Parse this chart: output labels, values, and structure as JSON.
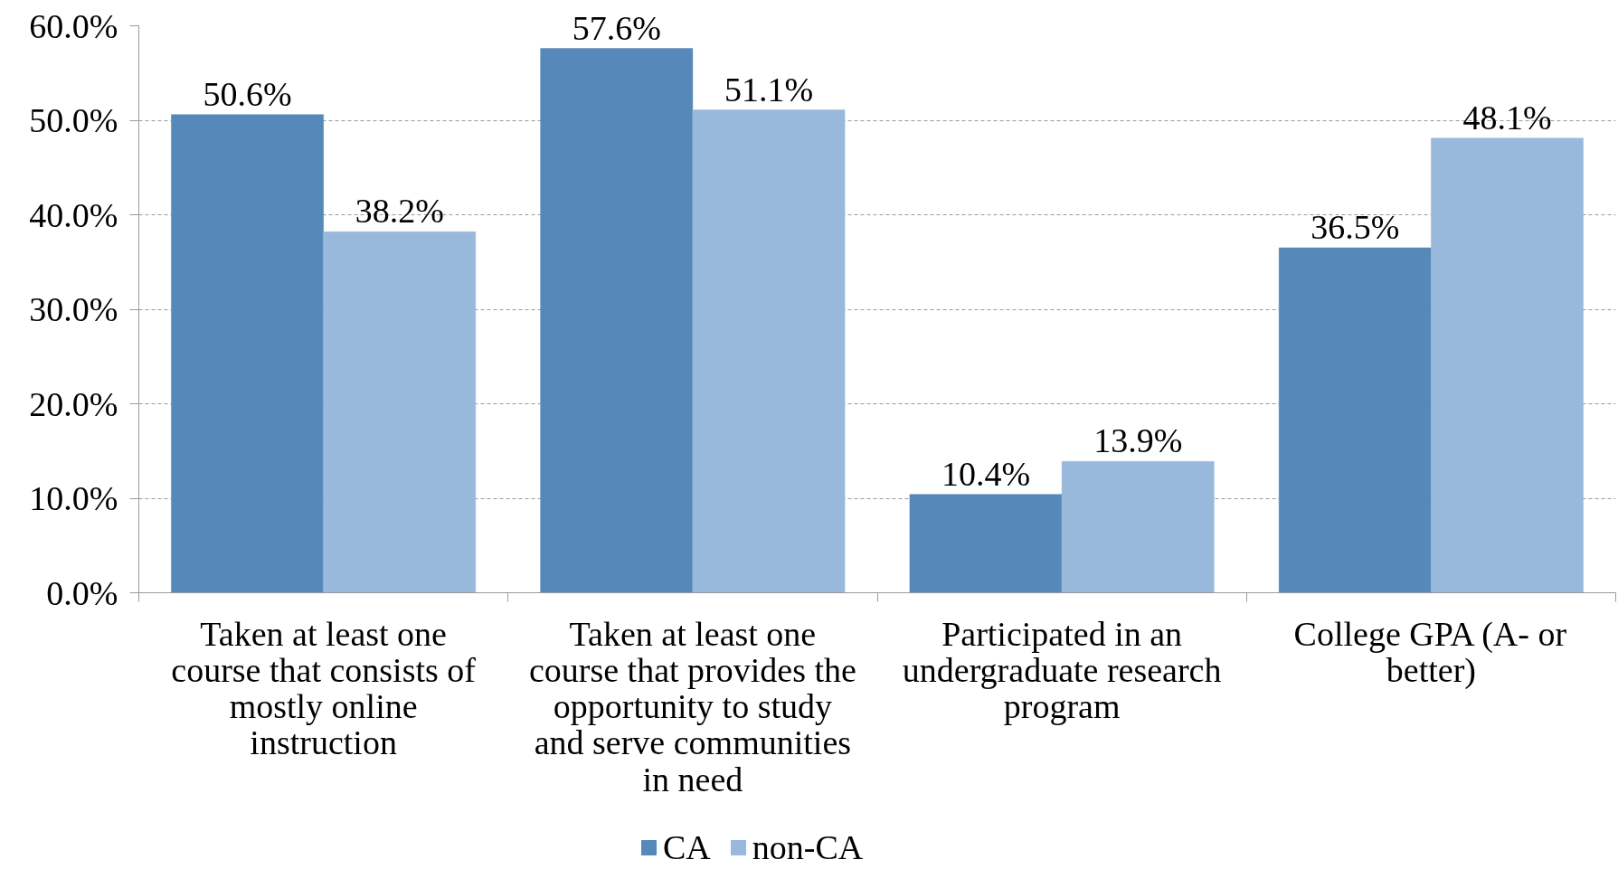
{
  "chart_data": {
    "type": "bar",
    "categories": [
      "Taken at least one course that consists of mostly online instruction",
      "Taken at least one course that provides the opportunity to study and serve communities in need",
      "Participated in an undergraduate research program",
      "College GPA (A- or better)"
    ],
    "series": [
      {
        "name": "CA",
        "color": "#5689b9",
        "values": [
          50.6,
          57.6,
          10.4,
          36.5
        ],
        "value_labels": [
          "50.6%",
          "57.6%",
          "10.4%",
          "36.5%"
        ]
      },
      {
        "name": "non-CA",
        "color": "#99b9dc",
        "values": [
          38.2,
          51.1,
          13.9,
          48.1
        ],
        "value_labels": [
          "38.2%",
          "51.1%",
          "13.9%",
          "48.1%"
        ]
      }
    ],
    "ylim": [
      0,
      60
    ],
    "yticks": [
      {
        "value": 0,
        "label": "0.0%"
      },
      {
        "value": 10,
        "label": "10.0%"
      },
      {
        "value": 20,
        "label": "20.0%"
      },
      {
        "value": 30,
        "label": "30.0%"
      },
      {
        "value": 40,
        "label": "40.0%"
      },
      {
        "value": 50,
        "label": "50.0%"
      },
      {
        "value": 60,
        "label": "60.0%"
      }
    ],
    "grid": "y",
    "legend": "bottom"
  }
}
